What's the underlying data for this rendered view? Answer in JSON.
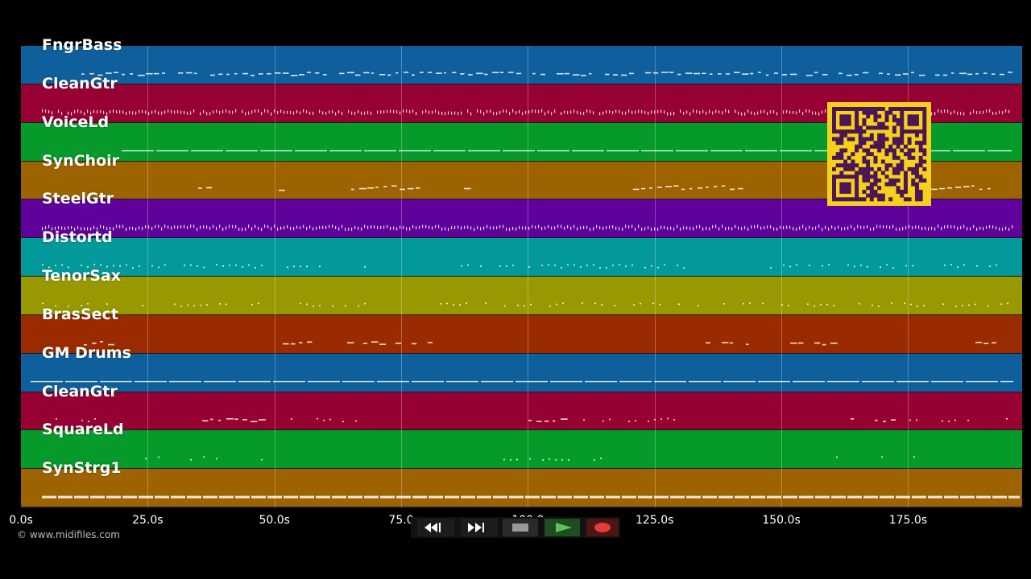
{
  "tracks": [
    {
      "label": "FngrBass",
      "color": "#0e5f9c"
    },
    {
      "label": "CleanGtr",
      "color": "#970033"
    },
    {
      "label": "VoiceLd",
      "color": "#059a2a"
    },
    {
      "label": "SynChoir",
      "color": "#9c6300"
    },
    {
      "label": "SteelGtr",
      "color": "#5f019a"
    },
    {
      "label": "Distortd",
      "color": "#03999a"
    },
    {
      "label": "TenorSax",
      "color": "#989900"
    },
    {
      "label": "BrasSect",
      "color": "#9a2b00"
    },
    {
      "label": "GM Drums",
      "color": "#0e5f9c"
    },
    {
      "label": "CleanGtr",
      "color": "#970033"
    },
    {
      "label": "SquareLd",
      "color": "#059a2a"
    },
    {
      "label": "SynStrg1",
      "color": "#9c6300"
    }
  ],
  "time_axis": {
    "ticks": [
      "0.0s",
      "25.0s",
      "50.0s",
      "75.0",
      "100.0",
      "125.0s",
      "150.0s",
      "175.0s"
    ],
    "tick_values": [
      0,
      25,
      50,
      75,
      100,
      125,
      150,
      175
    ],
    "max_seconds": 197.5
  },
  "copyright": "© www.midifiles.com",
  "transport": {
    "buttons": [
      {
        "name": "rewind-button",
        "icon": "rewind-icon"
      },
      {
        "name": "fast-forward-button",
        "icon": "fast-forward-icon"
      },
      {
        "name": "stop-button",
        "icon": "stop-icon"
      },
      {
        "name": "play-button",
        "icon": "play-icon"
      },
      {
        "name": "record-button",
        "icon": "record-icon"
      }
    ]
  },
  "qr_code": {
    "icon": "qr-code-icon",
    "color": "#f5d11c",
    "module_color": "#4a1656"
  }
}
